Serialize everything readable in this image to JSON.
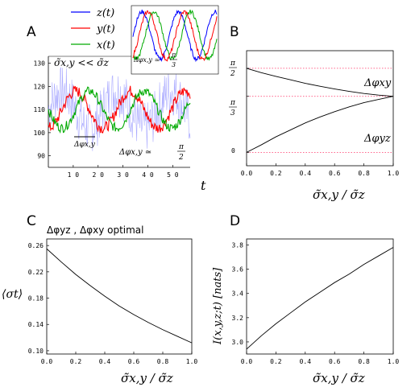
{
  "chart_data": [
    {
      "panel": "A",
      "type": "line",
      "xlabel": "t",
      "xticks": [
        "1 0",
        "2 0",
        "3 0",
        "4 0",
        "5 0"
      ],
      "yticks": [
        "130",
        "120",
        "110",
        "100",
        "90"
      ],
      "xlim": [
        0,
        57
      ],
      "ylim": [
        85,
        133
      ],
      "series": [
        {
          "name": "z(t)",
          "color": "#0000ff",
          "values": []
        },
        {
          "name": "y(t)",
          "color": "#ff0000",
          "values": []
        },
        {
          "name": "x(t)",
          "color": "#00aa00",
          "values": []
        }
      ],
      "annotations": {
        "sigma_relation": "σ̃x,y << σ̃z",
        "phase_label": "Δφx,y",
        "phase_value": "Δφx,y ≃ π/2",
        "inset_phase_value": "Δφx,y ≃ π/3"
      }
    },
    {
      "panel": "B",
      "type": "line",
      "xlabel": "σ̃x,y / σ̃z",
      "xticks": [
        "0.0",
        "0.2",
        "0.4",
        "0.6",
        "0.8",
        "1.0"
      ],
      "yticks": [
        "π/2",
        "π/3",
        "0"
      ],
      "xlim": [
        0,
        1
      ],
      "ylim": [
        -0.25,
        1.9
      ],
      "reference_lines": [
        1.5708,
        1.0472,
        0
      ],
      "series": [
        {
          "name": "Δφxy",
          "x": [
            0,
            0.1,
            0.2,
            0.3,
            0.4,
            0.5,
            0.6,
            0.7,
            0.8,
            0.9,
            1.0
          ],
          "values": [
            1.5708,
            1.49,
            1.42,
            1.355,
            1.29,
            1.235,
            1.185,
            1.14,
            1.1,
            1.07,
            1.0472
          ]
        },
        {
          "name": "Δφyz",
          "x": [
            0,
            0.1,
            0.2,
            0.3,
            0.4,
            0.5,
            0.6,
            0.7,
            0.8,
            0.9,
            1.0
          ],
          "values": [
            0.0,
            0.14,
            0.29,
            0.42,
            0.55,
            0.66,
            0.76,
            0.85,
            0.93,
            0.99,
            1.0472
          ]
        }
      ]
    },
    {
      "panel": "C",
      "type": "line",
      "title": "Δφyz , Δφxy  optimal",
      "xlabel": "σ̃x,y / σ̃z",
      "ylabel": "⟨σt⟩",
      "xticks": [
        "0.0",
        "0.2",
        "0.4",
        "0.6",
        "0.8",
        "1.0"
      ],
      "yticks": [
        "0.26",
        "0.22",
        "0.18",
        "0.14",
        "0.10"
      ],
      "xlim": [
        0,
        1
      ],
      "ylim": [
        0.095,
        0.27
      ],
      "series": [
        {
          "name": "⟨σt⟩",
          "x": [
            0,
            0.1,
            0.2,
            0.3,
            0.4,
            0.5,
            0.6,
            0.7,
            0.8,
            0.9,
            1.0
          ],
          "values": [
            0.255,
            0.235,
            0.216,
            0.199,
            0.183,
            0.168,
            0.155,
            0.143,
            0.132,
            0.122,
            0.112
          ]
        }
      ]
    },
    {
      "panel": "D",
      "type": "line",
      "xlabel": "σ̃x,y / σ̃z",
      "ylabel": "I(x,y,z;t) [nats]",
      "xticks": [
        "0.0",
        "0.2",
        "0.4",
        "0.6",
        "0.8",
        "1.0"
      ],
      "yticks": [
        "3.8",
        "3.6",
        "3.4",
        "3.2",
        "3.0"
      ],
      "xlim": [
        0,
        1
      ],
      "ylim": [
        2.9,
        3.85
      ],
      "series": [
        {
          "name": "I(x,y,z;t)",
          "x": [
            0,
            0.1,
            0.2,
            0.3,
            0.4,
            0.5,
            0.6,
            0.7,
            0.8,
            0.9,
            1.0
          ],
          "values": [
            2.94,
            3.05,
            3.15,
            3.24,
            3.33,
            3.41,
            3.49,
            3.56,
            3.64,
            3.71,
            3.78
          ]
        }
      ]
    }
  ],
  "labels": {
    "A": "A",
    "B": "B",
    "C": "C",
    "D": "D",
    "legend_z": "z(t)",
    "legend_y": "y(t)",
    "legend_x": "x(t)",
    "t": "t",
    "sigma_relation": "σ̃x,y << σ̃z",
    "phase_label": "Δφx,y",
    "phase_value": "Δφx,y ≃",
    "inset_phase": "Δφx,y ≃",
    "pi": "π",
    "two": "2",
    "three": "3",
    "dphi_xy": "Δφxy",
    "dphi_yz": "Δφyz",
    "ratio": "σ̃x,y / σ̃z",
    "c_title": "Δφyz , Δφxy  optimal",
    "c_ylabel": "⟨σt⟩",
    "d_ylabel": "I(x,y,z;t) [nats]"
  }
}
